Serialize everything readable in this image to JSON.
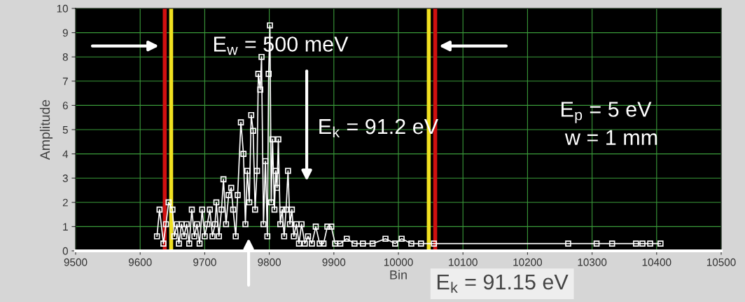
{
  "chart_data": {
    "type": "line",
    "xlabel": "Bin",
    "ylabel": "Amplitude",
    "xlim": [
      9500,
      10500
    ],
    "xticks": [
      9500,
      9600,
      9700,
      9800,
      9900,
      10000,
      10100,
      10200,
      10300,
      10400,
      10500
    ],
    "ylim": [
      0,
      10
    ],
    "yticks": [
      0,
      1,
      2,
      3,
      4,
      5,
      6,
      7,
      8,
      9,
      10
    ],
    "grid": true,
    "marker": "square",
    "line_style": "solid",
    "series": [
      {
        "color": "#ffffff",
        "x": [
          9626,
          9630,
          9636,
          9640,
          9644,
          9650,
          9653,
          9657,
          9660,
          9664,
          9668,
          9672,
          9676,
          9680,
          9684,
          9688,
          9692,
          9696,
          9700,
          9704,
          9708,
          9712,
          9716,
          9718,
          9722,
          9726,
          9729,
          9733,
          9737,
          9741,
          9744,
          9748,
          9751,
          9756,
          9760,
          9763,
          9766,
          9769,
          9772,
          9775,
          9778,
          9781,
          9783,
          9786,
          9788,
          9791,
          9794,
          9797,
          9799,
          9801,
          9803,
          9805,
          9808,
          9810,
          9812,
          9814,
          9817,
          9820,
          9823,
          9826,
          9829,
          9832,
          9835,
          9838,
          9842,
          9846,
          9850,
          9855,
          9860,
          9866,
          9872,
          9878,
          9884,
          9890,
          9896,
          9902,
          9910,
          9920,
          9932,
          9945,
          9960,
          9980,
          9995,
          10005,
          10020,
          10035,
          10055,
          10263,
          10307,
          10331,
          10368,
          10378,
          10390,
          10406
        ],
        "values": [
          0.6,
          1.7,
          0.3,
          1.1,
          2.0,
          1.7,
          0.6,
          1.1,
          0.3,
          1.1,
          0.6,
          1.1,
          0.3,
          1.7,
          0.6,
          1.1,
          0.3,
          1.7,
          0.6,
          1.1,
          1.7,
          0.6,
          1.1,
          2.0,
          0.6,
          1.7,
          2.95,
          1.1,
          2.3,
          2.6,
          1.7,
          0.6,
          2.3,
          5.3,
          4.0,
          1.1,
          3.3,
          2.0,
          5.6,
          4.95,
          1.7,
          3.3,
          7.3,
          6.65,
          8.0,
          1.1,
          3.7,
          0.6,
          7.3,
          9.3,
          2.0,
          4.6,
          1.7,
          3.3,
          2.6,
          4.6,
          1.1,
          1.7,
          0.6,
          1.7,
          3.3,
          1.1,
          1.7,
          0.6,
          1.1,
          0.3,
          1.1,
          0.3,
          0.6,
          0.3,
          1.0,
          0.3,
          0.3,
          1.0,
          1.0,
          0.3,
          0.3,
          0.5,
          0.3,
          0.3,
          0.3,
          0.5,
          0.3,
          0.5,
          0.3,
          0.3,
          0.3,
          0.3,
          0.3,
          0.3,
          0.3,
          0.3,
          0.3,
          0.3
        ]
      }
    ],
    "ref_lines": [
      {
        "axis": "x",
        "value": 9638,
        "color": "#d01010"
      },
      {
        "axis": "x",
        "value": 9648,
        "color": "#f0e020"
      },
      {
        "axis": "x",
        "value": 10047,
        "color": "#f0e020"
      },
      {
        "axis": "x",
        "value": 10057,
        "color": "#d01010"
      }
    ],
    "annotations": [
      "E$_{w}$ = 500 meV",
      "E$_{k}$ = 91.2 eV",
      "E$_{p}$ = 5 eV",
      "w = 1 mm",
      "E$_{k}$ = 91.15 eV"
    ]
  }
}
